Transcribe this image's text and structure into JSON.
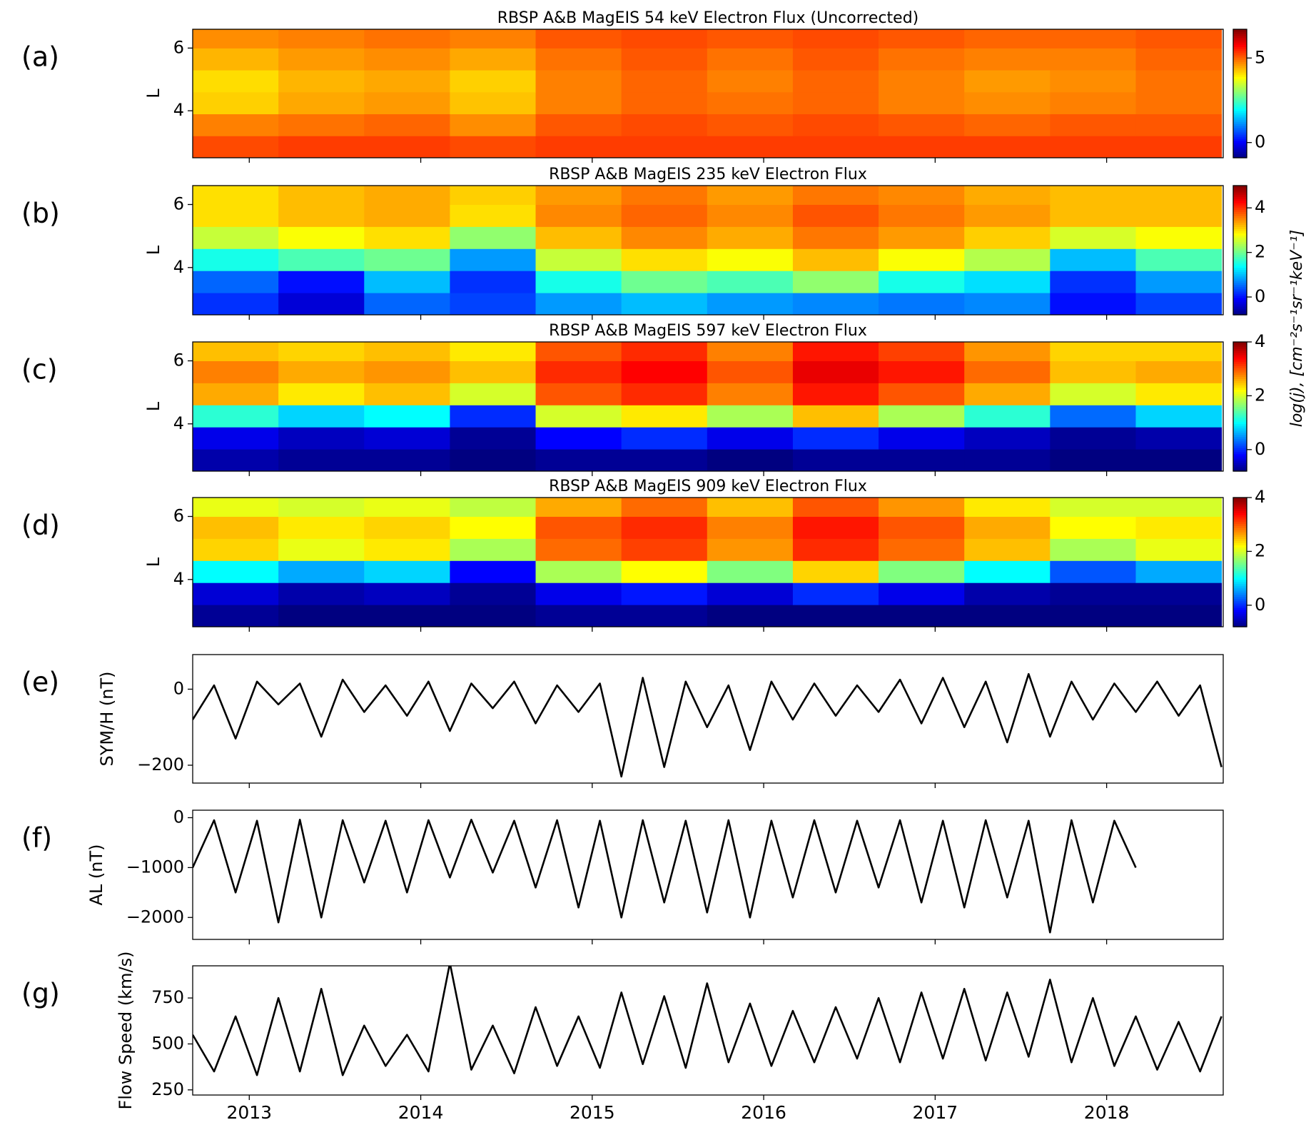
{
  "chart_data": [
    {
      "type": "heatmap",
      "panel_label": "(a)",
      "title": "RBSP A&B MagEIS 54 keV Electron Flux (Uncorrected)",
      "ylabel": "L",
      "colormap": "jet",
      "xlim": [
        2012.67,
        2018.68
      ],
      "ylim": [
        2.5,
        6.6
      ],
      "yticks": [
        4,
        6
      ],
      "zlim": [
        -0.9,
        6.7
      ],
      "zticks": [
        0,
        5
      ],
      "xbins": [
        2012.67,
        2013.17,
        2013.67,
        2014.17,
        2014.67,
        2015.17,
        2015.67,
        2016.17,
        2016.67,
        2017.17,
        2017.67,
        2018.17,
        2018.67
      ],
      "ybins": [
        2.5,
        3.2,
        3.9,
        4.6,
        5.3,
        6.0,
        6.6
      ],
      "z": [
        [
          5.2,
          5.3,
          5.3,
          5.2,
          5.3,
          5.3,
          5.3,
          5.3,
          5.3,
          5.3,
          5.3,
          5.3
        ],
        [
          4.8,
          4.9,
          5.0,
          4.7,
          5.1,
          5.2,
          5.1,
          5.2,
          5.1,
          5.0,
          5.1,
          5.1
        ],
        [
          4.2,
          4.5,
          4.6,
          4.3,
          4.8,
          5.0,
          4.9,
          5.0,
          4.8,
          4.7,
          4.8,
          4.9
        ],
        [
          4.1,
          4.4,
          4.5,
          4.2,
          4.8,
          5.0,
          4.8,
          5.0,
          4.8,
          4.6,
          4.7,
          4.9
        ],
        [
          4.4,
          4.6,
          4.7,
          4.5,
          4.9,
          5.1,
          4.9,
          5.1,
          4.9,
          4.8,
          4.8,
          5.0
        ],
        [
          4.7,
          4.8,
          4.9,
          4.8,
          5.1,
          5.2,
          5.1,
          5.2,
          5.1,
          5.0,
          5.0,
          5.1
        ]
      ]
    },
    {
      "type": "heatmap",
      "panel_label": "(b)",
      "title": "RBSP A&B MagEIS 235 keV Electron Flux",
      "ylabel": "L",
      "colormap": "jet",
      "zlabel": "log(j), [cm⁻²s⁻¹sr⁻¹keV⁻¹]",
      "xlim": [
        2012.67,
        2018.68
      ],
      "ylim": [
        2.5,
        6.6
      ],
      "yticks": [
        4,
        6
      ],
      "zlim": [
        -0.8,
        5
      ],
      "zticks": [
        0,
        2,
        4
      ],
      "xbins": [
        2012.67,
        2013.17,
        2013.67,
        2014.17,
        2014.67,
        2015.17,
        2015.67,
        2016.17,
        2016.67,
        2017.17,
        2017.67,
        2018.17,
        2018.67
      ],
      "ybins": [
        2.5,
        3.2,
        3.9,
        4.6,
        5.3,
        6.0,
        6.6
      ],
      "z": [
        [
          0.2,
          -0.3,
          0.5,
          0.3,
          0.8,
          1.0,
          0.8,
          0.7,
          0.6,
          0.7,
          0.0,
          0.3
        ],
        [
          0.5,
          0.0,
          1.0,
          0.2,
          1.5,
          2.0,
          1.8,
          2.2,
          1.5,
          1.2,
          0.2,
          0.8
        ],
        [
          1.5,
          1.8,
          2.0,
          0.8,
          2.5,
          3.0,
          2.8,
          3.2,
          2.8,
          2.4,
          1.0,
          1.8
        ],
        [
          2.5,
          2.8,
          3.0,
          2.2,
          3.2,
          3.5,
          3.3,
          3.6,
          3.4,
          3.1,
          2.6,
          2.8
        ],
        [
          3.0,
          3.2,
          3.3,
          3.0,
          3.5,
          3.7,
          3.5,
          3.8,
          3.6,
          3.4,
          3.2,
          3.2
        ],
        [
          3.0,
          3.2,
          3.3,
          3.1,
          3.4,
          3.6,
          3.4,
          3.6,
          3.5,
          3.3,
          3.2,
          3.2
        ]
      ]
    },
    {
      "type": "heatmap",
      "panel_label": "(c)",
      "title": "RBSP A&B MagEIS 597 keV Electron Flux",
      "ylabel": "L",
      "colormap": "jet",
      "xlim": [
        2012.67,
        2018.68
      ],
      "ylim": [
        2.5,
        6.6
      ],
      "yticks": [
        4,
        6
      ],
      "zlim": [
        -0.8,
        4
      ],
      "zticks": [
        0,
        2,
        4
      ],
      "xbins": [
        2012.67,
        2013.17,
        2013.67,
        2014.17,
        2014.67,
        2015.17,
        2015.67,
        2016.17,
        2016.67,
        2017.17,
        2017.67,
        2018.17,
        2018.67
      ],
      "ybins": [
        2.5,
        3.2,
        3.9,
        4.6,
        5.3,
        6.0,
        6.6
      ],
      "z": [
        [
          -0.6,
          -0.7,
          -0.7,
          -0.8,
          -0.7,
          -0.7,
          -0.8,
          -0.7,
          -0.7,
          -0.7,
          -0.8,
          -0.8
        ],
        [
          -0.3,
          -0.5,
          -0.4,
          -0.7,
          -0.2,
          0.0,
          -0.3,
          0.0,
          -0.3,
          -0.5,
          -0.7,
          -0.6
        ],
        [
          1.2,
          0.8,
          1.0,
          0.0,
          2.0,
          2.3,
          1.8,
          2.5,
          1.8,
          1.2,
          0.3,
          0.8
        ],
        [
          2.6,
          2.3,
          2.5,
          2.0,
          3.0,
          3.2,
          2.8,
          3.3,
          3.0,
          2.6,
          2.0,
          2.3
        ],
        [
          2.8,
          2.6,
          2.7,
          2.5,
          3.2,
          3.4,
          3.0,
          3.5,
          3.3,
          2.9,
          2.5,
          2.6
        ],
        [
          2.5,
          2.4,
          2.5,
          2.3,
          3.0,
          3.2,
          2.8,
          3.3,
          3.1,
          2.7,
          2.4,
          2.4
        ]
      ]
    },
    {
      "type": "heatmap",
      "panel_label": "(d)",
      "title": "RBSP A&B MagEIS 909 keV Electron Flux",
      "ylabel": "L",
      "colormap": "jet",
      "xlim": [
        2012.67,
        2018.68
      ],
      "ylim": [
        2.5,
        6.6
      ],
      "yticks": [
        4,
        6
      ],
      "zlim": [
        -0.8,
        4
      ],
      "zticks": [
        0,
        2,
        4
      ],
      "xbins": [
        2012.67,
        2013.17,
        2013.67,
        2014.17,
        2014.67,
        2015.17,
        2015.67,
        2016.17,
        2016.67,
        2017.17,
        2017.67,
        2018.17,
        2018.67
      ],
      "ybins": [
        2.5,
        3.2,
        3.9,
        4.6,
        5.3,
        6.0,
        6.6
      ],
      "z": [
        [
          -0.7,
          -0.8,
          -0.8,
          -0.8,
          -0.7,
          -0.7,
          -0.8,
          -0.8,
          -0.8,
          -0.8,
          -0.8,
          -0.8
        ],
        [
          -0.4,
          -0.6,
          -0.5,
          -0.7,
          -0.3,
          -0.1,
          -0.4,
          0.0,
          -0.3,
          -0.6,
          -0.7,
          -0.7
        ],
        [
          1.0,
          0.6,
          0.8,
          -0.2,
          1.8,
          2.2,
          1.6,
          2.4,
          1.6,
          1.0,
          0.2,
          0.6
        ],
        [
          2.4,
          2.1,
          2.3,
          1.8,
          2.9,
          3.1,
          2.7,
          3.2,
          2.9,
          2.5,
          1.8,
          2.1
        ],
        [
          2.5,
          2.3,
          2.4,
          2.2,
          3.0,
          3.2,
          2.8,
          3.3,
          3.0,
          2.6,
          2.2,
          2.3
        ],
        [
          2.1,
          2.0,
          2.1,
          1.9,
          2.6,
          2.9,
          2.5,
          3.0,
          2.7,
          2.3,
          2.0,
          2.0
        ]
      ]
    },
    {
      "type": "line",
      "panel_label": "(e)",
      "ylabel": "SYM/H (nT)",
      "color": "#000000",
      "xlim": [
        2012.67,
        2018.68
      ],
      "ylim": [
        -247,
        91
      ],
      "yticks": [
        {
          "value": -200,
          "label": "−200"
        },
        0
      ],
      "x": [
        2012.67,
        2012.795,
        2012.92,
        2013.045,
        2013.17,
        2013.295,
        2013.42,
        2013.545,
        2013.67,
        2013.795,
        2013.92,
        2014.045,
        2014.17,
        2014.295,
        2014.42,
        2014.545,
        2014.67,
        2014.795,
        2014.92,
        2015.045,
        2015.17,
        2015.295,
        2015.42,
        2015.545,
        2015.67,
        2015.795,
        2015.92,
        2016.045,
        2016.17,
        2016.295,
        2016.42,
        2016.545,
        2016.67,
        2016.795,
        2016.92,
        2017.045,
        2017.17,
        2017.295,
        2017.42,
        2017.545,
        2017.67,
        2017.795,
        2017.92,
        2018.045,
        2018.17,
        2018.295,
        2018.42,
        2018.545,
        2018.67
      ],
      "values": [
        -80,
        10,
        -130,
        20,
        -40,
        15,
        -125,
        25,
        -60,
        10,
        -70,
        20,
        -110,
        15,
        -50,
        20,
        -90,
        10,
        -60,
        15,
        -230,
        30,
        -205,
        20,
        -100,
        10,
        -160,
        20,
        -80,
        15,
        -70,
        10,
        -60,
        25,
        -90,
        30,
        -100,
        20,
        -140,
        40,
        -125,
        20,
        -80,
        15,
        -60,
        20,
        -70,
        10,
        -205
      ]
    },
    {
      "type": "line",
      "panel_label": "(f)",
      "ylabel": "AL (nT)",
      "color": "#000000",
      "xlim": [
        2012.67,
        2018.68
      ],
      "ylim": [
        -2440,
        150
      ],
      "yticks": [
        {
          "value": -2000,
          "label": "−2000"
        },
        {
          "value": -1000,
          "label": "−1000"
        },
        0
      ],
      "x": [
        2012.67,
        2012.795,
        2012.92,
        2013.045,
        2013.17,
        2013.295,
        2013.42,
        2013.545,
        2013.67,
        2013.795,
        2013.92,
        2014.045,
        2014.17,
        2014.295,
        2014.42,
        2014.545,
        2014.67,
        2014.795,
        2014.92,
        2015.045,
        2015.17,
        2015.295,
        2015.42,
        2015.545,
        2015.67,
        2015.795,
        2015.92,
        2016.045,
        2016.17,
        2016.295,
        2016.42,
        2016.545,
        2016.67,
        2016.795,
        2016.92,
        2017.045,
        2017.17,
        2017.295,
        2017.42,
        2017.545,
        2017.67,
        2017.795,
        2017.92,
        2018.045,
        2018.17
      ],
      "values": [
        -1000,
        -50,
        -1500,
        -60,
        -2100,
        -40,
        -2000,
        -50,
        -1300,
        -60,
        -1500,
        -50,
        -1200,
        -40,
        -1100,
        -60,
        -1400,
        -50,
        -1800,
        -60,
        -2000,
        -50,
        -1700,
        -60,
        -1900,
        -50,
        -2000,
        -60,
        -1600,
        -50,
        -1500,
        -60,
        -1400,
        -50,
        -1700,
        -60,
        -1800,
        -50,
        -1600,
        -60,
        -2300,
        -50,
        -1700,
        -60,
        -1000
      ]
    },
    {
      "type": "line",
      "panel_label": "(g)",
      "ylabel": "Flow Speed (km/s)",
      "color": "#000000",
      "xlim": [
        2012.67,
        2018.68
      ],
      "ylim": [
        222,
        925
      ],
      "yticks": [
        250,
        500,
        750
      ],
      "xticks": [
        2013,
        2014,
        2015,
        2016,
        2017,
        2018
      ],
      "x": [
        2012.67,
        2012.795,
        2012.92,
        2013.045,
        2013.17,
        2013.295,
        2013.42,
        2013.545,
        2013.67,
        2013.795,
        2013.92,
        2014.045,
        2014.17,
        2014.295,
        2014.42,
        2014.545,
        2014.67,
        2014.795,
        2014.92,
        2015.045,
        2015.17,
        2015.295,
        2015.42,
        2015.545,
        2015.67,
        2015.795,
        2015.92,
        2016.045,
        2016.17,
        2016.295,
        2016.42,
        2016.545,
        2016.67,
        2016.795,
        2016.92,
        2017.045,
        2017.17,
        2017.295,
        2017.42,
        2017.545,
        2017.67,
        2017.795,
        2017.92,
        2018.045,
        2018.17,
        2018.295,
        2018.42,
        2018.545,
        2018.67
      ],
      "values": [
        550,
        350,
        650,
        330,
        750,
        350,
        800,
        330,
        600,
        380,
        550,
        350,
        940,
        360,
        600,
        340,
        700,
        380,
        650,
        370,
        780,
        390,
        760,
        370,
        830,
        400,
        720,
        380,
        680,
        400,
        700,
        420,
        750,
        400,
        780,
        420,
        800,
        410,
        780,
        430,
        850,
        400,
        750,
        380,
        650,
        360,
        620,
        350,
        650
      ]
    }
  ]
}
